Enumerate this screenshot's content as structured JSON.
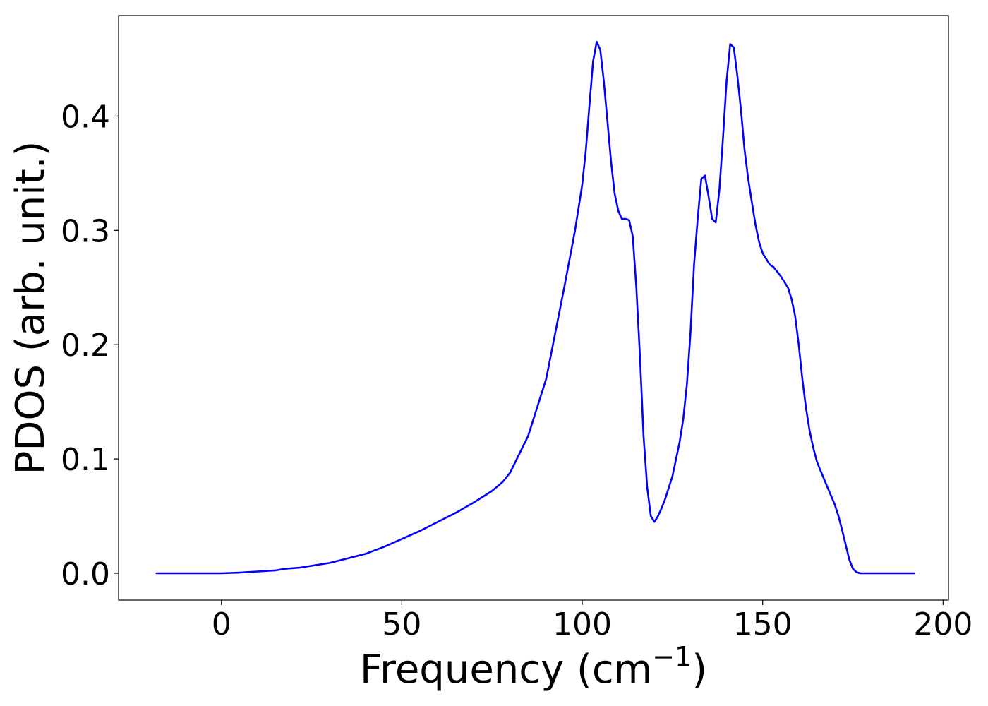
{
  "chart_data": {
    "type": "line",
    "xlabel": "Frequency (cm",
    "xlabel_unit_exponent": "−1",
    "xlabel_close": ")",
    "ylabel": "PDOS (arb. unit.)",
    "xlim": [
      -28.5,
      201.5
    ],
    "ylim": [
      -0.0235,
      0.488
    ],
    "xticks": [
      0,
      50,
      100,
      150,
      200
    ],
    "xtick_labels": [
      "0",
      "50",
      "100",
      "150",
      "200"
    ],
    "yticks": [
      0.0,
      0.1,
      0.2,
      0.3,
      0.4
    ],
    "ytick_labels": [
      "0.0",
      "0.1",
      "0.2",
      "0.3",
      "0.4"
    ],
    "grid": false,
    "series": [
      {
        "color": "#0000ff",
        "x": [
          -18,
          -10,
          0,
          5,
          10,
          15,
          18,
          22,
          25,
          30,
          35,
          40,
          45,
          50,
          55,
          60,
          65,
          70,
          75,
          78,
          80,
          85,
          90,
          95,
          98,
          100,
          101,
          102,
          103,
          104,
          105,
          106,
          107,
          108,
          109,
          110,
          111,
          112,
          113,
          114,
          115,
          116,
          117,
          118,
          119,
          120,
          121,
          122,
          123,
          125,
          127,
          128,
          129,
          130,
          131,
          132,
          133,
          134,
          135,
          136,
          137,
          138,
          139,
          140,
          141,
          142,
          143,
          144,
          145,
          146,
          147,
          148,
          149,
          150,
          151,
          152,
          153,
          155,
          157,
          158,
          159,
          160,
          161,
          162,
          163,
          164,
          165,
          166,
          168,
          170,
          171,
          172,
          173,
          174,
          175,
          176,
          177,
          178,
          180,
          185,
          192
        ],
        "y": [
          0.0,
          0.0,
          0.0,
          0.0005,
          0.0015,
          0.0025,
          0.004,
          0.005,
          0.0065,
          0.009,
          0.013,
          0.017,
          0.023,
          0.03,
          0.037,
          0.045,
          0.053,
          0.062,
          0.072,
          0.08,
          0.088,
          0.12,
          0.17,
          0.25,
          0.3,
          0.34,
          0.37,
          0.41,
          0.448,
          0.465,
          0.458,
          0.43,
          0.395,
          0.36,
          0.332,
          0.317,
          0.31,
          0.31,
          0.309,
          0.295,
          0.25,
          0.19,
          0.12,
          0.075,
          0.05,
          0.045,
          0.05,
          0.057,
          0.065,
          0.085,
          0.115,
          0.135,
          0.165,
          0.21,
          0.27,
          0.31,
          0.345,
          0.348,
          0.33,
          0.31,
          0.307,
          0.335,
          0.38,
          0.43,
          0.463,
          0.46,
          0.435,
          0.405,
          0.37,
          0.345,
          0.325,
          0.305,
          0.29,
          0.28,
          0.275,
          0.27,
          0.268,
          0.26,
          0.25,
          0.24,
          0.225,
          0.2,
          0.17,
          0.145,
          0.125,
          0.11,
          0.098,
          0.09,
          0.075,
          0.06,
          0.05,
          0.038,
          0.025,
          0.012,
          0.004,
          0.001,
          0.0,
          0.0,
          0.0,
          0.0,
          0.0
        ]
      }
    ]
  }
}
